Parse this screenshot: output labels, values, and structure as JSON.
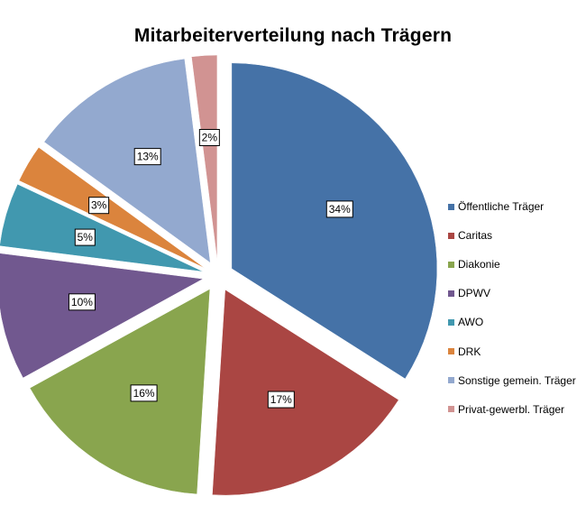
{
  "chart_data": {
    "type": "pie",
    "title": "Mitarbeiterverteilung nach Trägern",
    "slices": [
      {
        "label": "Öffentliche Träger",
        "value": 34,
        "display": "34%",
        "color": "#4572A7"
      },
      {
        "label": "Caritas",
        "value": 17,
        "display": "17%",
        "color": "#AA4643"
      },
      {
        "label": "Diakonie",
        "value": 16,
        "display": "16%",
        "color": "#89A54E"
      },
      {
        "label": "DPWV",
        "value": 10,
        "display": "10%",
        "color": "#71588F"
      },
      {
        "label": "AWO",
        "value": 5,
        "display": "5%",
        "color": "#4198AF"
      },
      {
        "label": "DRK",
        "value": 3,
        "display": "3%",
        "color": "#DB843D"
      },
      {
        "label": "Sonstige gemein. Träger",
        "value": 13,
        "display": "13%",
        "color": "#93A9CF"
      },
      {
        "label": "Privat-gewerbl. Träger",
        "value": 2,
        "display": "2%",
        "color": "#D19392"
      }
    ],
    "legend_position": "right",
    "exploded": true
  }
}
